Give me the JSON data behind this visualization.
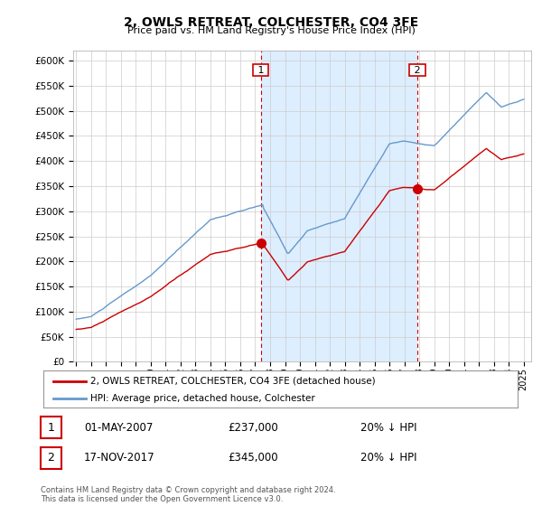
{
  "title": "2, OWLS RETREAT, COLCHESTER, CO4 3FE",
  "subtitle": "Price paid vs. HM Land Registry's House Price Index (HPI)",
  "ylabel_ticks": [
    "£0",
    "£50K",
    "£100K",
    "£150K",
    "£200K",
    "£250K",
    "£300K",
    "£350K",
    "£400K",
    "£450K",
    "£500K",
    "£550K",
    "£600K"
  ],
  "ylim": [
    0,
    620000
  ],
  "yticks": [
    0,
    50000,
    100000,
    150000,
    200000,
    250000,
    300000,
    350000,
    400000,
    450000,
    500000,
    550000,
    600000
  ],
  "legend_line1": "2, OWLS RETREAT, COLCHESTER, CO4 3FE (detached house)",
  "legend_line2": "HPI: Average price, detached house, Colchester",
  "annotation1_label": "1",
  "annotation1_date": "01-MAY-2007",
  "annotation1_price": "£237,000",
  "annotation1_hpi": "20% ↓ HPI",
  "annotation2_label": "2",
  "annotation2_date": "17-NOV-2017",
  "annotation2_price": "£345,000",
  "annotation2_hpi": "20% ↓ HPI",
  "footer": "Contains HM Land Registry data © Crown copyright and database right 2024.\nThis data is licensed under the Open Government Licence v3.0.",
  "red_color": "#cc0000",
  "blue_color": "#6699cc",
  "fill_color": "#ddeeff",
  "sale1_year": 2007.38,
  "sale1_price": 237000,
  "sale2_year": 2017.88,
  "sale2_price": 345000,
  "background_color": "#ffffff",
  "grid_color": "#cccccc"
}
